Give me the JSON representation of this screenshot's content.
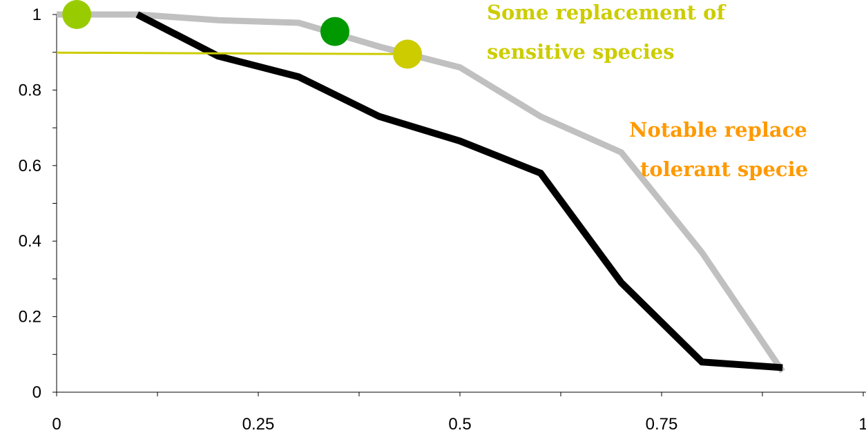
{
  "chart_data": {
    "type": "line",
    "title": "",
    "xlabel": "",
    "ylabel": "",
    "xlim": [
      0,
      1
    ],
    "ylim": [
      0,
      1
    ],
    "x_ticks": [
      "0",
      "0.25",
      "0.5",
      "0.75",
      "1"
    ],
    "y_ticks": [
      "0",
      "0.2",
      "0.4",
      "0.6",
      "0.8",
      "1"
    ],
    "grid": false,
    "legend": "none",
    "series": [
      {
        "color": "#000000",
        "x": [
          0.1,
          0.2,
          0.3,
          0.4,
          0.5,
          0.6,
          0.7,
          0.8,
          0.9
        ],
        "y": [
          1.0,
          0.89,
          0.835,
          0.73,
          0.665,
          0.58,
          0.29,
          0.08,
          0.065
        ]
      },
      {
        "color": "#c0c0c0",
        "x": [
          0.0,
          0.1,
          0.2,
          0.3,
          0.4,
          0.5,
          0.6,
          0.7,
          0.8,
          0.9
        ],
        "y": [
          1.0,
          1.0,
          0.985,
          0.978,
          0.915,
          0.86,
          0.73,
          0.635,
          0.37,
          0.055
        ]
      },
      {
        "color": "#cccc00",
        "x": [
          0.0,
          0.45
        ],
        "y": [
          0.899,
          0.895
        ]
      }
    ],
    "markers": [
      {
        "x": 0.025,
        "y": 1.0,
        "color": "#99cc00"
      },
      {
        "x": 0.345,
        "y": 0.955,
        "color": "#009900"
      },
      {
        "x": 0.435,
        "y": 0.895,
        "color": "#cccc00"
      }
    ],
    "annotations": [
      {
        "lines": [
          "Some replacement of",
          "sensitive species"
        ],
        "color": "#cccc00"
      },
      {
        "lines": [
          "Notable replace",
          "tolerant specie"
        ],
        "color": "#ff9900"
      }
    ]
  }
}
